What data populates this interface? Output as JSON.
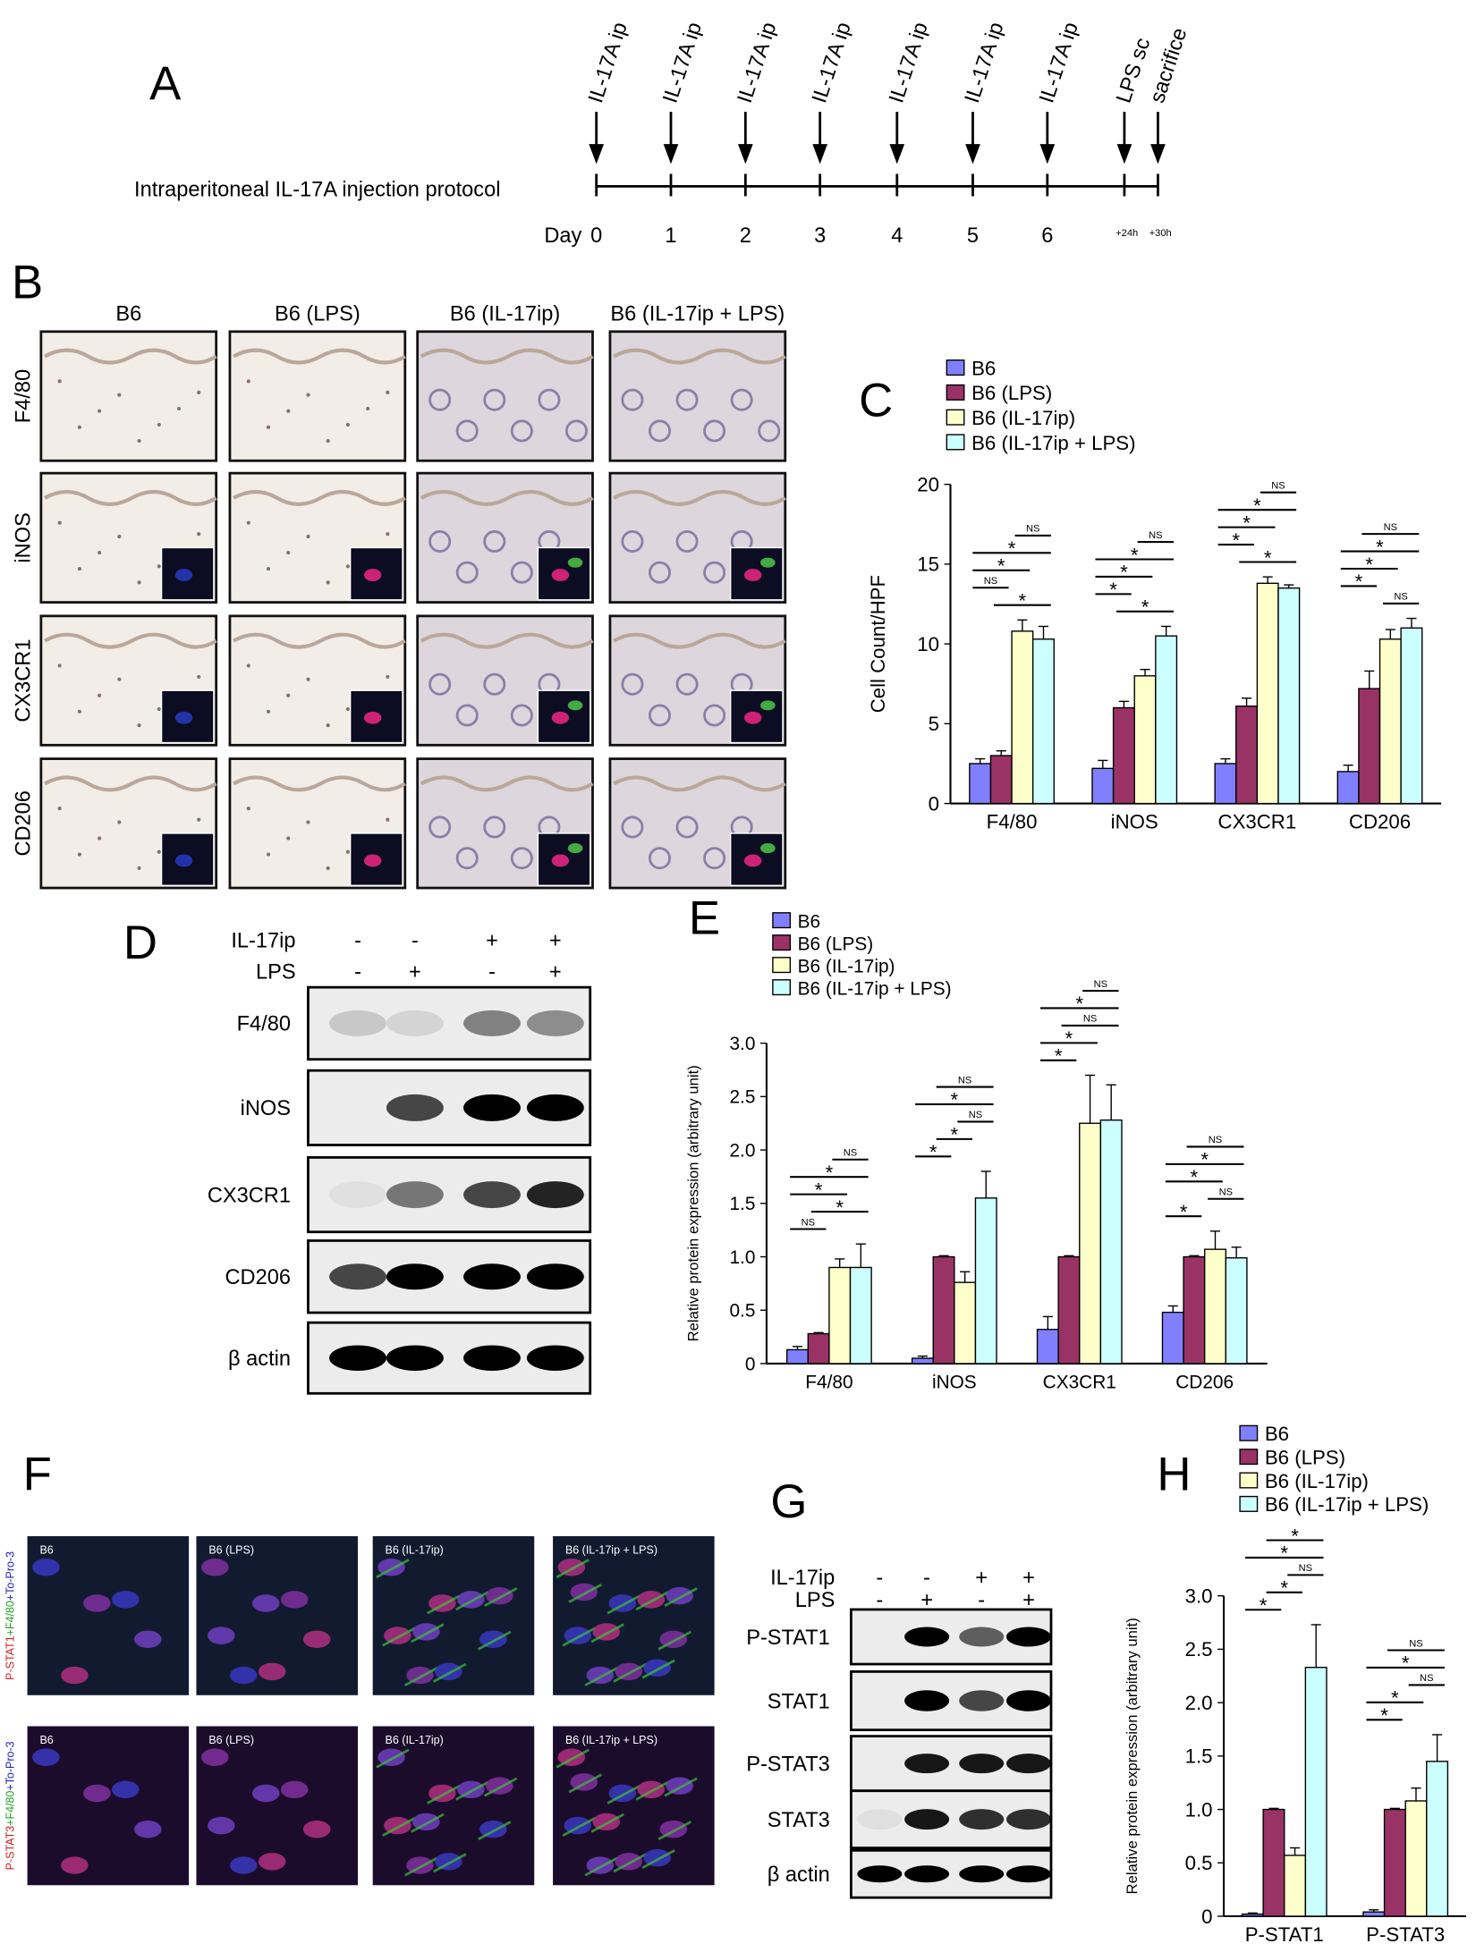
{
  "panel_labels": [
    "A",
    "B",
    "C",
    "D",
    "E",
    "F",
    "G",
    "H"
  ],
  "timeline": {
    "title": "Intraperitoneal IL-17A injection protocol",
    "day_label": "Day",
    "events": [
      "IL-17A ip",
      "IL-17A ip",
      "IL-17A ip",
      "IL-17A ip",
      "IL-17A ip",
      "IL-17A ip",
      "IL-17A ip",
      "LPS sc",
      "sacrifice"
    ],
    "ticks": [
      "0",
      "1",
      "2",
      "3",
      "4",
      "5",
      "6",
      "+24h",
      "+30h"
    ]
  },
  "micrographs": {
    "columns": [
      "B6",
      "B6 (LPS)",
      "B6 (IL-17ip)",
      "B6 (IL-17ip + LPS)"
    ],
    "rows": [
      "F4/80",
      "iNOS",
      "CX3CR1",
      "CD206"
    ]
  },
  "blot_d": {
    "conditions": [
      {
        "name": "IL-17ip",
        "signs": [
          "-",
          "-",
          "+",
          "+"
        ]
      },
      {
        "name": "LPS",
        "signs": [
          "-",
          "+",
          "-",
          "+"
        ]
      }
    ],
    "proteins": [
      "F4/80",
      "iNOS",
      "CX3CR1",
      "CD206",
      "β actin"
    ]
  },
  "immunofluorescence": {
    "rows": [
      [
        "P-STAT1",
        "+F4/80",
        "+To-Pro-3"
      ],
      [
        "P-STAT3",
        "+F4/80",
        "+To-Pro-3"
      ]
    ],
    "columns": [
      "B6",
      "B6 (LPS)",
      "B6 (IL-17ip)",
      "B6 (IL-17ip + LPS)"
    ]
  },
  "blot_g": {
    "conditions": [
      {
        "name": "IL-17ip",
        "signs": [
          "-",
          "-",
          "+",
          "+"
        ]
      },
      {
        "name": "LPS",
        "signs": [
          "-",
          "+",
          "-",
          "+"
        ]
      }
    ],
    "proteins": [
      "P-STAT1",
      "STAT1",
      "P-STAT3",
      "STAT3",
      "β actin"
    ]
  },
  "chart_data": [
    {
      "type": "bar",
      "ylabel": "Cell Count/HPF",
      "categories": [
        "F4/80",
        "iNOS",
        "CX3CR1",
        "CD206"
      ],
      "series": [
        {
          "name": "B6",
          "color": "#8080ff",
          "values": [
            2.5,
            2.2,
            2.5,
            2.0
          ],
          "errors": [
            0.3,
            0.5,
            0.3,
            0.4
          ]
        },
        {
          "name": "B6 (LPS)",
          "color": "#993366",
          "values": [
            3.0,
            6.0,
            6.1,
            7.2
          ],
          "errors": [
            0.3,
            0.4,
            0.5,
            1.1
          ]
        },
        {
          "name": "B6 (IL-17ip)",
          "color": "#ffffcc",
          "values": [
            10.8,
            8.0,
            13.8,
            10.3
          ],
          "errors": [
            0.7,
            0.4,
            0.4,
            0.6
          ]
        },
        {
          "name": "B6 (IL-17ip + LPS)",
          "color": "#ccffff",
          "values": [
            10.3,
            10.5,
            13.5,
            11.0
          ],
          "errors": [
            0.8,
            0.6,
            0.2,
            0.6
          ]
        }
      ],
      "ylim": [
        0,
        20
      ],
      "yticks": [
        0,
        5,
        10,
        15,
        20
      ],
      "annotations": [
        [
          {
            "text": "*",
            "series": [
              1,
              3
            ]
          },
          {
            "text": "NS",
            "series": [
              0,
              1
            ]
          },
          {
            "text": "*",
            "series": [
              0,
              2
            ]
          },
          {
            "text": "*",
            "series": [
              0,
              3
            ]
          },
          {
            "text": "NS",
            "series": [
              2,
              3
            ]
          }
        ],
        [
          {
            "text": "*",
            "series": [
              1,
              3
            ]
          },
          {
            "text": "*",
            "series": [
              0,
              1
            ]
          },
          {
            "text": "*",
            "series": [
              0,
              2
            ]
          },
          {
            "text": "*",
            "series": [
              0,
              3
            ]
          },
          {
            "text": "NS",
            "series": [
              2,
              3
            ]
          }
        ],
        [
          {
            "text": "*",
            "series": [
              1,
              3
            ]
          },
          {
            "text": "*",
            "series": [
              0,
              1
            ]
          },
          {
            "text": "*",
            "series": [
              0,
              2
            ]
          },
          {
            "text": "*",
            "series": [
              0,
              3
            ]
          },
          {
            "text": "NS",
            "series": [
              2,
              3
            ]
          }
        ],
        [
          {
            "text": "NS",
            "series": [
              2,
              3
            ]
          },
          {
            "text": "*",
            "series": [
              0,
              1
            ]
          },
          {
            "text": "*",
            "series": [
              0,
              2
            ]
          },
          {
            "text": "*",
            "series": [
              0,
              3
            ]
          },
          {
            "text": "NS",
            "series": [
              1,
              3
            ]
          }
        ]
      ]
    },
    {
      "type": "bar",
      "ylabel": "Relative protein expression (arbitrary unit)",
      "categories": [
        "F4/80",
        "iNOS",
        "CX3CR1",
        "CD206"
      ],
      "series": [
        {
          "name": "B6",
          "color": "#8080ff",
          "values": [
            0.13,
            0.05,
            0.32,
            0.48
          ],
          "errors": [
            0.03,
            0.02,
            0.12,
            0.06
          ]
        },
        {
          "name": "B6 (LPS)",
          "color": "#993366",
          "values": [
            0.28,
            1.0,
            1.0,
            1.0
          ],
          "errors": [
            0.01,
            0.01,
            0.01,
            0.01
          ]
        },
        {
          "name": "B6 (IL-17ip)",
          "color": "#ffffcc",
          "values": [
            0.9,
            0.76,
            2.25,
            1.07
          ],
          "errors": [
            0.08,
            0.1,
            0.45,
            0.17
          ]
        },
        {
          "name": "B6 (IL-17ip + LPS)",
          "color": "#ccffff",
          "values": [
            0.9,
            1.55,
            2.28,
            0.99
          ],
          "errors": [
            0.22,
            0.25,
            0.33,
            0.1
          ]
        }
      ],
      "ylim": [
        0,
        3
      ],
      "yticks": [
        0,
        0.5,
        {
          "value": 1,
          "label": "1.0"
        },
        1.5,
        {
          "value": 2,
          "label": "2.0"
        },
        2.5,
        {
          "value": 3,
          "label": "3.0"
        }
      ],
      "annotations": [
        [
          {
            "text": "NS",
            "series": [
              0,
              1
            ]
          },
          {
            "text": "*",
            "series": [
              1,
              3
            ]
          },
          {
            "text": "*",
            "series": [
              0,
              2
            ]
          },
          {
            "text": "*",
            "series": [
              0,
              3
            ]
          },
          {
            "text": "NS",
            "series": [
              2,
              3
            ]
          }
        ],
        [
          {
            "text": "*",
            "series": [
              0,
              1
            ]
          },
          {
            "text": "*",
            "series": [
              1,
              2
            ]
          },
          {
            "text": "NS",
            "series": [
              2,
              3
            ]
          },
          {
            "text": "*",
            "series": [
              0,
              3
            ]
          },
          {
            "text": "NS",
            "series": [
              1,
              3
            ]
          }
        ],
        [
          {
            "text": "*",
            "series": [
              0,
              1
            ]
          },
          {
            "text": "*",
            "series": [
              0,
              2
            ]
          },
          {
            "text": "NS",
            "series": [
              1,
              3
            ]
          },
          {
            "text": "*",
            "series": [
              0,
              3
            ]
          },
          {
            "text": "NS",
            "series": [
              2,
              3
            ]
          }
        ],
        [
          {
            "text": "*",
            "series": [
              0,
              1
            ]
          },
          {
            "text": "NS",
            "series": [
              2,
              3
            ]
          },
          {
            "text": "*",
            "series": [
              0,
              2
            ]
          },
          {
            "text": "*",
            "series": [
              0,
              3
            ]
          },
          {
            "text": "NS",
            "series": [
              1,
              3
            ]
          }
        ]
      ]
    },
    {
      "type": "bar",
      "ylabel": "Relative protein expression (arbitrary unit)",
      "categories": [
        "P-STAT1",
        "P-STAT3"
      ],
      "series": [
        {
          "name": "B6",
          "color": "#8080ff",
          "values": [
            0.02,
            0.04
          ],
          "errors": [
            0.01,
            0.02
          ]
        },
        {
          "name": "B6 (LPS)",
          "color": "#993366",
          "values": [
            1.0,
            1.0
          ],
          "errors": [
            0.01,
            0.01
          ]
        },
        {
          "name": "B6 (IL-17ip)",
          "color": "#ffffcc",
          "values": [
            0.57,
            1.08
          ],
          "errors": [
            0.07,
            0.12
          ]
        },
        {
          "name": "B6 (IL-17ip + LPS)",
          "color": "#ccffff",
          "values": [
            2.33,
            1.45
          ],
          "errors": [
            0.4,
            0.25
          ]
        }
      ],
      "ylim": [
        0,
        3
      ],
      "yticks": [
        0,
        0.5,
        {
          "value": 1,
          "label": "1.0"
        },
        1.5,
        {
          "value": 2,
          "label": "2.0"
        },
        2.5,
        {
          "value": 3,
          "label": "3.0"
        }
      ],
      "annotations": [
        [
          {
            "text": "*",
            "series": [
              0,
              1
            ]
          },
          {
            "text": "*",
            "series": [
              1,
              2
            ]
          },
          {
            "text": "NS",
            "series": [
              2,
              3
            ]
          },
          {
            "text": "*",
            "series": [
              0,
              3
            ]
          },
          {
            "text": "*",
            "series": [
              1,
              3
            ]
          }
        ],
        [
          {
            "text": "*",
            "series": [
              0,
              1
            ]
          },
          {
            "text": "*",
            "series": [
              0,
              2
            ]
          },
          {
            "text": "NS",
            "series": [
              2,
              3
            ]
          },
          {
            "text": "*",
            "series": [
              0,
              3
            ]
          },
          {
            "text": "NS",
            "series": [
              1,
              3
            ]
          }
        ]
      ]
    }
  ]
}
